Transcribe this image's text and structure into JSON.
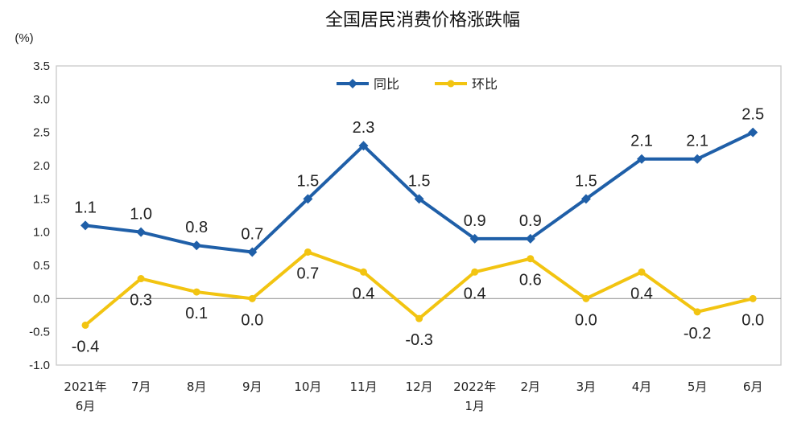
{
  "chart_data": {
    "type": "line",
    "title": "全国居民消费价格涨跌幅",
    "unit_label": "(%)",
    "categories": [
      "2021年 6月",
      "7月",
      "8月",
      "9月",
      "10月",
      "11月",
      "12月",
      "2022年 1月",
      "2月",
      "3月",
      "4月",
      "5月",
      "6月"
    ],
    "category_lines": [
      [
        "2021年",
        "6月"
      ],
      [
        "7月"
      ],
      [
        "8月"
      ],
      [
        "9月"
      ],
      [
        "10月"
      ],
      [
        "11月"
      ],
      [
        "12月"
      ],
      [
        "2022年",
        "1月"
      ],
      [
        "2月"
      ],
      [
        "3月"
      ],
      [
        "4月"
      ],
      [
        "5月"
      ],
      [
        "6月"
      ]
    ],
    "ylim": [
      -1.0,
      3.5
    ],
    "yticks": [
      "3.5",
      "3.0",
      "2.5",
      "2.0",
      "1.5",
      "1.0",
      "0.5",
      "0.0",
      "-0.5",
      "-1.0"
    ],
    "ytick_values": [
      3.5,
      3.0,
      2.5,
      2.0,
      1.5,
      1.0,
      0.5,
      0.0,
      -0.5,
      -1.0
    ],
    "legend_position": "top-center",
    "series": [
      {
        "name": "同比",
        "color": "#1f5fa8",
        "marker": "diamond",
        "values": [
          1.1,
          1.0,
          0.8,
          0.7,
          1.5,
          2.3,
          1.5,
          0.9,
          0.9,
          1.5,
          2.1,
          2.1,
          2.5
        ],
        "labels": [
          "1.1",
          "1.0",
          "0.8",
          "0.7",
          "1.5",
          "2.3",
          "1.5",
          "0.9",
          "0.9",
          "1.5",
          "2.1",
          "2.1",
          "2.5"
        ]
      },
      {
        "name": "环比",
        "color": "#f2c411",
        "marker": "circle",
        "values": [
          -0.4,
          0.3,
          0.1,
          0.0,
          0.7,
          0.4,
          -0.3,
          0.4,
          0.6,
          0.0,
          0.4,
          -0.2,
          0.0
        ],
        "labels": [
          "-0.4",
          "0.3",
          "0.1",
          "0.0",
          "0.7",
          "0.4",
          "-0.3",
          "0.4",
          "0.6",
          "0.0",
          "0.4",
          "-0.2",
          "0.0"
        ]
      }
    ]
  }
}
